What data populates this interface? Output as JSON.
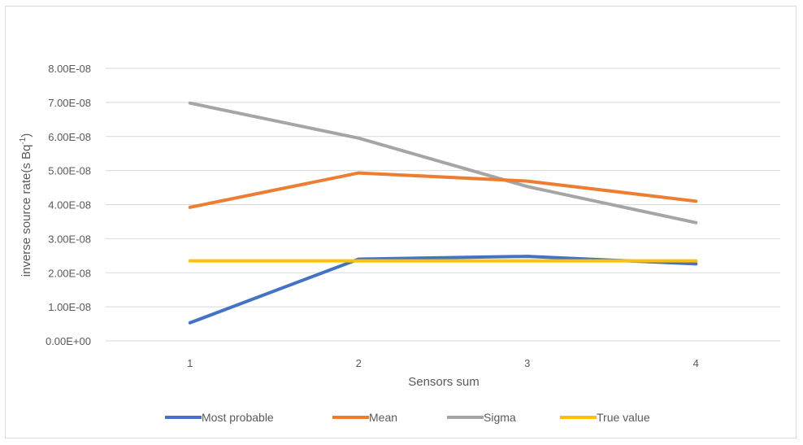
{
  "chart_data": {
    "type": "line",
    "title": "",
    "xlabel": "Sensors sum",
    "ylabel": "inverse source rate(s Bq",
    "ylabel_sup": "-1",
    "ylabel_close": ")",
    "categories": [
      "1",
      "2",
      "3",
      "4"
    ],
    "y_tick_labels": [
      "0.00E+00",
      "1.00E-08",
      "2.00E-08",
      "3.00E-08",
      "4.00E-08",
      "5.00E-08",
      "6.00E-08",
      "7.00E-08",
      "8.00E-08"
    ],
    "ylim": [
      0,
      8e-08
    ],
    "grid": true,
    "legend_position": "bottom",
    "series": [
      {
        "name": "Most probable",
        "color": "#4472c4",
        "values": [
          5.3e-09,
          2.4e-08,
          2.48e-08,
          2.26e-08
        ]
      },
      {
        "name": "Mean",
        "color": "#ed7d31",
        "values": [
          3.92e-08,
          4.93e-08,
          4.69e-08,
          4.1e-08
        ]
      },
      {
        "name": "Sigma",
        "color": "#a5a5a5",
        "values": [
          6.98e-08,
          5.95e-08,
          4.53e-08,
          3.47e-08
        ]
      },
      {
        "name": "True value",
        "color": "#ffc000",
        "values": [
          2.35e-08,
          2.35e-08,
          2.35e-08,
          2.35e-08
        ]
      }
    ]
  }
}
